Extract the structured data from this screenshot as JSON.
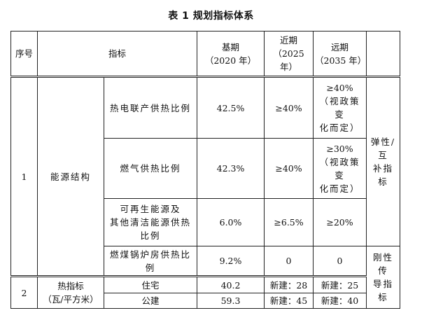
{
  "title": "表 1 规划指标体系",
  "headers": {
    "seq": "序号",
    "indicator": "指标",
    "base": [
      "基期",
      "（2020 年）"
    ],
    "near": [
      "近期",
      "（2025",
      "年）"
    ],
    "far": [
      "远期",
      "（2035 年）"
    ]
  },
  "group1": {
    "seq": "1",
    "name": "能源结构",
    "rows": [
      {
        "sub": [
          "热电联产供热比例"
        ],
        "base": "42.5%",
        "near": "≥40%",
        "far": [
          "≥40%",
          "（视政策变",
          "化而定）"
        ]
      },
      {
        "sub": [
          "燃气供热比例"
        ],
        "base": "42.3%",
        "near": "≥40%",
        "far": [
          "≥30%",
          "（视政策变",
          "化而定）"
        ]
      },
      {
        "sub": [
          "可再生能源及",
          "其他清洁能源供热",
          "比例"
        ],
        "base": "6.0%",
        "near": "≥6.5%",
        "far": [
          "≥20%"
        ]
      },
      {
        "sub": [
          "燃煤锅炉房供热比",
          "例"
        ],
        "base": "9.2%",
        "near": "0",
        "far": [
          "0"
        ]
      }
    ],
    "type_elastic": [
      "弹性/互",
      "补指标"
    ]
  },
  "group2": {
    "seq": "2",
    "name": [
      "热指标",
      "（瓦/平方米）"
    ],
    "rows": [
      {
        "sub": "住宅",
        "base": "40.2",
        "near": "新建：28",
        "far": "新建：25"
      },
      {
        "sub": "公建",
        "base": "59.3",
        "near": "新建：45",
        "far": "新建：40"
      }
    ],
    "type_rigid": [
      "刚性传",
      "导指标"
    ]
  }
}
